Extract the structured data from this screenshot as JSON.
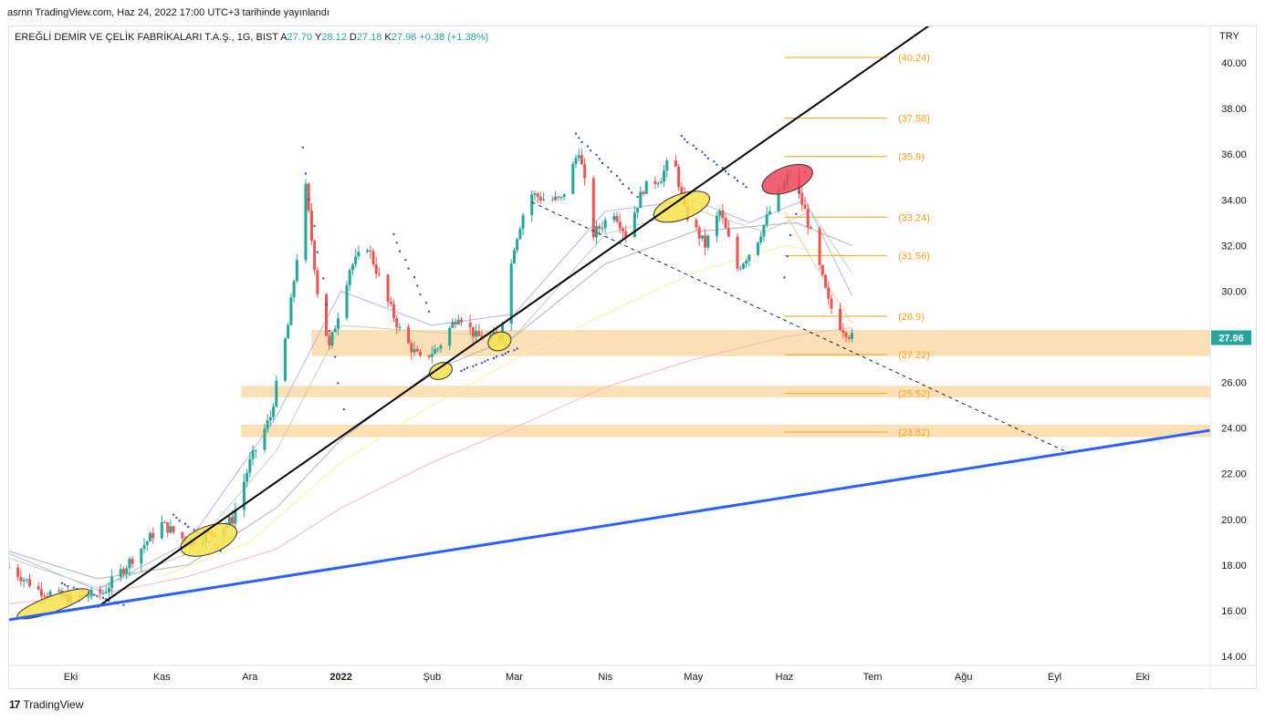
{
  "header": {
    "credit": "asrnn TradingView.com, Haz 24, 2022 17:00 UTC+3 tarihinde yayınlandı"
  },
  "legend": {
    "symbol": "EREĞLİ DEMİR VE ÇELİK FABRİKALARI T.A.Ş., 1G, BIST",
    "open_label": "A",
    "open": "27.70",
    "high_label": "Y",
    "high": "28.12",
    "low_label": "D",
    "low": "27.18",
    "close_label": "K",
    "close": "27.96",
    "change": "+0.38 (+1.38%)"
  },
  "currency": "TRY",
  "footer": {
    "logo_glyph": "17",
    "brand": "TradingView"
  },
  "colors": {
    "up": "#26a69a",
    "down": "#ef5350",
    "fib": "#f7a21b",
    "zone": "#fcd9a8",
    "trend_black": "#000000",
    "trend_blue": "#2962ff",
    "price_tag": "#26a69a",
    "highlight_yellow": "#f9e24a",
    "highlight_red": "#f0445a"
  },
  "chart_data": {
    "type": "candlestick",
    "y_axis_ticks": [
      "14.00",
      "16.00",
      "18.00",
      "20.00",
      "22.00",
      "24.00",
      "26.00",
      "28.00",
      "30.00",
      "32.00",
      "34.00",
      "36.00",
      "38.00",
      "40.00"
    ],
    "ylim": [
      13.6,
      41.6
    ],
    "x_axis_labels": [
      {
        "label": "Eki",
        "x": "2021-10-01"
      },
      {
        "label": "Kas",
        "x": "2021-11-01"
      },
      {
        "label": "Ara",
        "x": "2021-12-01"
      },
      {
        "label": "2022",
        "x": "2022-01-01",
        "bold": true
      },
      {
        "label": "Şub",
        "x": "2022-02-01"
      },
      {
        "label": "Mar",
        "x": "2022-03-01"
      },
      {
        "label": "Nis",
        "x": "2022-04-01"
      },
      {
        "label": "May",
        "x": "2022-05-01"
      },
      {
        "label": "Haz",
        "x": "2022-06-01"
      },
      {
        "label": "Tem",
        "x": "2022-07-01"
      },
      {
        "label": "Ağu",
        "x": "2022-08-01"
      },
      {
        "label": "Eyl",
        "x": "2022-09-01"
      },
      {
        "label": "Eki",
        "x": "2022-10-01"
      }
    ],
    "xlim": [
      "2021-09-10",
      "2022-10-24"
    ],
    "last_price": "27.96",
    "fib_levels": [
      {
        "label": "(40.24)",
        "value": 40.24
      },
      {
        "label": "(37.58)",
        "value": 37.58
      },
      {
        "label": "(35.9)",
        "value": 35.9
      },
      {
        "label": "(33.24)",
        "value": 33.24
      },
      {
        "label": "(31.56)",
        "value": 31.56
      },
      {
        "label": "(28.9)",
        "value": 28.9
      },
      {
        "label": "(27.22)",
        "value": 27.22
      },
      {
        "label": "(25.52)",
        "value": 25.52
      },
      {
        "label": "(23.82)",
        "value": 23.82
      }
    ],
    "fib_x_range": [
      "2022-06-01",
      "2022-07-06"
    ],
    "zones": [
      {
        "from": "2021-12-22",
        "top": 28.3,
        "bottom": 27.15
      },
      {
        "from": "2021-11-28",
        "top": 25.85,
        "bottom": 25.35
      },
      {
        "from": "2021-11-28",
        "top": 24.15,
        "bottom": 23.6
      }
    ],
    "trendlines": [
      {
        "kind": "black",
        "x1": "2021-10-10",
        "y1": 16.15,
        "x2": "2022-07-31",
        "y2": 42.6
      },
      {
        "kind": "blue",
        "x1": "2021-09-10",
        "y1": 15.6,
        "x2": "2022-10-24",
        "y2": 23.9
      },
      {
        "kind": "dashed",
        "x1": "2022-03-07",
        "y1": 33.9,
        "x2": "2022-09-06",
        "y2": 22.9
      }
    ],
    "highlights": [
      {
        "kind": "yellow",
        "x": "2021-09-25",
        "y": 16.3,
        "rx": "2021-10-08",
        "ry": 0.35
      },
      {
        "kind": "yellow",
        "x": "2021-11-17",
        "y": 19.1,
        "rx": "2021-11-27",
        "ry": 0.6
      },
      {
        "kind": "yellow",
        "x": "2022-02-04",
        "y": 26.5,
        "rx": "2022-02-08",
        "ry": 0.35
      },
      {
        "kind": "yellow",
        "x": "2022-02-24",
        "y": 27.8,
        "rx": "2022-02-28",
        "ry": 0.4
      },
      {
        "kind": "yellow",
        "x": "2022-04-27",
        "y": 33.7,
        "rx": "2022-05-07",
        "ry": 0.55
      },
      {
        "kind": "red",
        "x": "2022-06-02",
        "y": 34.9,
        "rx": "2022-06-11",
        "ry": 0.55
      }
    ],
    "price_path": [
      [
        "2021-09-10",
        17.9
      ],
      [
        "2021-09-20",
        16.9
      ],
      [
        "2021-10-01",
        16.5
      ],
      [
        "2021-10-12",
        16.8
      ],
      [
        "2021-10-22",
        18.3
      ],
      [
        "2021-11-01",
        19.8
      ],
      [
        "2021-11-10",
        19.0
      ],
      [
        "2021-11-20",
        19.5
      ],
      [
        "2021-11-25",
        20.0
      ],
      [
        "2021-12-01",
        22.5
      ],
      [
        "2021-12-08",
        24.5
      ],
      [
        "2021-12-14",
        28.5
      ],
      [
        "2021-12-20",
        34.5
      ],
      [
        "2021-12-24",
        30.0
      ],
      [
        "2021-12-28",
        27.5
      ],
      [
        "2022-01-04",
        31.0
      ],
      [
        "2022-01-10",
        32.0
      ],
      [
        "2022-01-17",
        29.5
      ],
      [
        "2022-01-22",
        28.0
      ],
      [
        "2022-01-28",
        27.0
      ],
      [
        "2022-02-03",
        27.5
      ],
      [
        "2022-02-10",
        29.0
      ],
      [
        "2022-02-16",
        28.0
      ],
      [
        "2022-02-24",
        28.0
      ],
      [
        "2022-03-01",
        32.0
      ],
      [
        "2022-03-06",
        34.3
      ],
      [
        "2022-03-12",
        34.0
      ],
      [
        "2022-03-17",
        34.0
      ],
      [
        "2022-03-23",
        36.2
      ],
      [
        "2022-03-28",
        32.5
      ],
      [
        "2022-04-04",
        33.5
      ],
      [
        "2022-04-08",
        32.5
      ],
      [
        "2022-04-14",
        34.5
      ],
      [
        "2022-04-20",
        35.0
      ],
      [
        "2022-04-24",
        36.0
      ],
      [
        "2022-04-28",
        33.5
      ],
      [
        "2022-05-05",
        32.0
      ],
      [
        "2022-05-10",
        33.5
      ],
      [
        "2022-05-16",
        31.0
      ],
      [
        "2022-05-22",
        32.0
      ],
      [
        "2022-05-27",
        33.5
      ],
      [
        "2022-06-03",
        35.2
      ],
      [
        "2022-06-08",
        33.5
      ],
      [
        "2022-06-12",
        31.5
      ],
      [
        "2022-06-16",
        29.5
      ],
      [
        "2022-06-20",
        28.5
      ],
      [
        "2022-06-24",
        27.96
      ]
    ],
    "sar_path": [
      [
        "2021-09-28",
        17.2
      ],
      [
        "2021-10-20",
        16.2
      ],
      [
        "2021-11-05",
        20.2
      ],
      [
        "2021-11-22",
        18.6
      ],
      [
        "2021-12-19",
        36.3
      ],
      [
        "2022-01-03",
        24.0
      ],
      [
        "2022-01-19",
        32.5
      ],
      [
        "2022-02-01",
        29.0
      ],
      [
        "2022-02-11",
        26.5
      ],
      [
        "2022-03-03",
        27.5
      ],
      [
        "2022-03-22",
        36.9
      ],
      [
        "2022-04-13",
        34.0
      ],
      [
        "2022-04-27",
        36.8
      ],
      [
        "2022-05-20",
        34.5
      ],
      [
        "2022-06-01",
        30.6
      ],
      [
        "2022-06-09",
        35.9
      ],
      [
        "2022-06-24",
        30.8
      ]
    ],
    "ma_paths": [
      {
        "color": "#aeb4f0",
        "points": [
          [
            "2021-09-10",
            18.5
          ],
          [
            "2021-10-10",
            16.9
          ],
          [
            "2021-11-10",
            19.0
          ],
          [
            "2021-12-10",
            24.5
          ],
          [
            "2022-01-01",
            30.0
          ],
          [
            "2022-02-01",
            28.5
          ],
          [
            "2022-03-01",
            29.0
          ],
          [
            "2022-04-01",
            33.5
          ],
          [
            "2022-05-01",
            34.0
          ],
          [
            "2022-05-20",
            33.0
          ],
          [
            "2022-06-08",
            34.0
          ],
          [
            "2022-06-24",
            29.8
          ]
        ]
      },
      {
        "color": "#b9d7b4",
        "points": [
          [
            "2021-09-10",
            18.3
          ],
          [
            "2021-10-10",
            17.0
          ],
          [
            "2021-11-10",
            18.5
          ],
          [
            "2021-12-10",
            23.0
          ],
          [
            "2022-01-01",
            28.5
          ],
          [
            "2022-02-01",
            28.2
          ],
          [
            "2022-03-01",
            28.0
          ],
          [
            "2022-04-01",
            32.5
          ],
          [
            "2022-05-01",
            33.6
          ],
          [
            "2022-05-25",
            32.6
          ],
          [
            "2022-06-10",
            33.5
          ],
          [
            "2022-06-24",
            30.8
          ]
        ]
      },
      {
        "color": "#b2b2b2",
        "points": [
          [
            "2021-09-10",
            18.6
          ],
          [
            "2021-10-10",
            17.4
          ],
          [
            "2021-11-10",
            18.0
          ],
          [
            "2021-12-10",
            20.5
          ],
          [
            "2022-01-01",
            23.5
          ],
          [
            "2022-02-01",
            26.5
          ],
          [
            "2022-03-01",
            28.0
          ],
          [
            "2022-04-01",
            31.2
          ],
          [
            "2022-05-01",
            32.6
          ],
          [
            "2022-06-05",
            33.0
          ],
          [
            "2022-06-24",
            32.0
          ]
        ]
      },
      {
        "color": "#fbf1a0",
        "points": [
          [
            "2021-11-01",
            17.5
          ],
          [
            "2021-12-01",
            19.0
          ],
          [
            "2022-01-01",
            22.5
          ],
          [
            "2022-02-01",
            25.0
          ],
          [
            "2022-03-01",
            27.0
          ],
          [
            "2022-04-01",
            29.0
          ],
          [
            "2022-05-01",
            30.8
          ],
          [
            "2022-06-01",
            32.0
          ],
          [
            "2022-06-24",
            31.5
          ]
        ]
      },
      {
        "color": "#f7b9b7",
        "points": [
          [
            "2021-09-10",
            16.3
          ],
          [
            "2021-10-10",
            16.7
          ],
          [
            "2021-11-10",
            17.5
          ],
          [
            "2021-12-10",
            18.7
          ],
          [
            "2022-01-01",
            20.5
          ],
          [
            "2022-02-01",
            22.5
          ],
          [
            "2022-03-01",
            24.0
          ],
          [
            "2022-04-01",
            25.8
          ],
          [
            "2022-05-01",
            27.0
          ],
          [
            "2022-06-01",
            28.0
          ],
          [
            "2022-06-24",
            28.4
          ]
        ]
      },
      {
        "color": "#f7c79b",
        "points": [
          [
            "2022-06-01",
            33.5
          ],
          [
            "2022-06-12",
            31.0
          ],
          [
            "2022-06-24",
            28.6
          ]
        ]
      }
    ]
  }
}
